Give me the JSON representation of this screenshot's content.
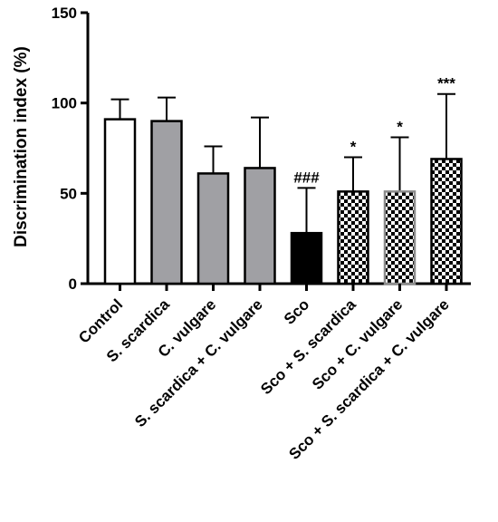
{
  "chart_data": {
    "type": "bar",
    "ylabel": "Discrimination index (%)",
    "ylim": [
      0,
      150
    ],
    "yticks": [
      "0",
      "50",
      "100",
      "150"
    ],
    "grid": false,
    "categories": [
      "Control",
      "S. scardica",
      "C. vulgare",
      "S. scardica + C. vulgare",
      "Sco",
      "Sco + S. scardica",
      "Sco + C. vulgare",
      "Sco + S. scardica + C. vulgare"
    ],
    "values": [
      91,
      90,
      61,
      64,
      28,
      51,
      51,
      69
    ],
    "error_upper": [
      102,
      103,
      76,
      92,
      53,
      70,
      81,
      105
    ],
    "annotations": [
      "",
      "",
      "",
      "",
      "###",
      "*",
      "*",
      "***"
    ],
    "styles": [
      "white",
      "gray",
      "gray",
      "gray",
      "black",
      "checker",
      "checker-gray-border",
      "checker"
    ],
    "colors": {
      "white": "#ffffff",
      "gray": "#a0a0a4",
      "black": "#000000",
      "outline": "#000000",
      "gray_border": "#8c8c8c"
    }
  }
}
